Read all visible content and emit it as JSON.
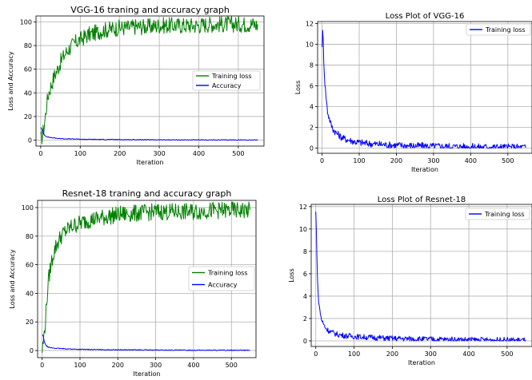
{
  "colors": {
    "training": "#008000",
    "accuracy": "#0000ff",
    "grid": "#b0b0b0"
  },
  "chart_data": [
    {
      "id": "vgg-acc",
      "type": "line",
      "title": "VGG-16 traning and accuracy graph",
      "xlabel": "Iteration",
      "ylabel": "Loss and Accuracy",
      "xlim": [
        -12,
        565
      ],
      "ylim": [
        -5,
        105
      ],
      "xticks": [
        0,
        100,
        200,
        300,
        400,
        500
      ],
      "yticks": [
        0,
        20,
        40,
        60,
        80,
        100
      ],
      "grid": true,
      "legend_position": "center-right",
      "series": [
        {
          "name": "Training loss",
          "color": "#008000",
          "x": [
            0,
            5,
            10,
            15,
            20,
            25,
            30,
            35,
            40,
            45,
            50,
            60,
            70,
            80,
            90,
            100,
            110,
            120,
            130,
            140,
            150,
            160,
            180,
            200,
            220,
            240,
            260,
            280,
            300,
            320,
            340,
            360,
            380,
            400,
            420,
            440,
            460,
            480,
            500,
            520,
            540,
            550
          ],
          "y": [
            0,
            5,
            15,
            30,
            40,
            45,
            50,
            55,
            58,
            62,
            66,
            72,
            77,
            80,
            83,
            85,
            87,
            89,
            90,
            91,
            92,
            93,
            94,
            95,
            95,
            96,
            96,
            96,
            97,
            97,
            97,
            97,
            97,
            97,
            98,
            98,
            98,
            98,
            98,
            98,
            98,
            97
          ],
          "noise": 7
        },
        {
          "name": "Accuracy",
          "color": "#0000ff",
          "x": [
            0,
            5,
            10,
            15,
            20,
            30,
            40,
            60,
            80,
            100,
            150,
            200,
            300,
            400,
            500,
            550
          ],
          "y": [
            11,
            7,
            4,
            3,
            2.5,
            2,
            1.6,
            1.2,
            1,
            0.8,
            0.6,
            0.5,
            0.3,
            0.2,
            0.2,
            0.2
          ],
          "noise": 0.3
        }
      ]
    },
    {
      "id": "vgg-loss",
      "type": "line",
      "title": "Loss Plot of VGG-16",
      "xlabel": "Iteration",
      "ylabel": "Loss",
      "xlim": [
        -12,
        565
      ],
      "ylim": [
        -0.5,
        12.2
      ],
      "xticks": [
        0,
        100,
        200,
        300,
        400,
        500
      ],
      "yticks": [
        0,
        2,
        4,
        6,
        8,
        10,
        12
      ],
      "grid": true,
      "legend_position": "top-right",
      "series": [
        {
          "name": "Training loss",
          "color": "#0000ff",
          "x": [
            0,
            2,
            5,
            8,
            12,
            15,
            20,
            25,
            30,
            40,
            50,
            60,
            70,
            80,
            90,
            100,
            120,
            140,
            160,
            180,
            200,
            250,
            300,
            350,
            400,
            450,
            500,
            550
          ],
          "y": [
            10,
            11.5,
            8,
            6,
            4.5,
            3.5,
            2.8,
            2.2,
            1.8,
            1.4,
            1.1,
            0.9,
            0.8,
            0.7,
            0.6,
            0.55,
            0.45,
            0.4,
            0.35,
            0.3,
            0.28,
            0.22,
            0.18,
            0.15,
            0.12,
            0.1,
            0.08,
            0.07
          ],
          "noise": 0.35
        }
      ]
    },
    {
      "id": "res-acc",
      "type": "line",
      "title": "Resnet-18 traning and accuracy graph",
      "xlabel": "Iteration",
      "ylabel": "Loss and Accuracy",
      "xlim": [
        -12,
        565
      ],
      "ylim": [
        -5,
        105
      ],
      "xticks": [
        0,
        100,
        200,
        300,
        400,
        500
      ],
      "yticks": [
        0,
        20,
        40,
        60,
        80,
        100
      ],
      "grid": true,
      "legend_position": "center-right",
      "series": [
        {
          "name": "Training loss",
          "color": "#008000",
          "x": [
            0,
            5,
            10,
            15,
            20,
            25,
            30,
            35,
            40,
            50,
            60,
            70,
            80,
            90,
            100,
            120,
            140,
            160,
            180,
            200,
            250,
            300,
            350,
            400,
            450,
            500,
            550
          ],
          "y": [
            0,
            10,
            25,
            45,
            55,
            62,
            68,
            72,
            75,
            80,
            83,
            85,
            87,
            88,
            89,
            91,
            92,
            93,
            94,
            95,
            96,
            97,
            97,
            97,
            98,
            98,
            98
          ],
          "noise": 6
        },
        {
          "name": "Accuracy",
          "color": "#0000ff",
          "x": [
            0,
            3,
            6,
            10,
            15,
            20,
            30,
            40,
            60,
            80,
            100,
            150,
            200,
            300,
            400,
            500,
            550
          ],
          "y": [
            11,
            10,
            6,
            3.5,
            2.5,
            2,
            1.7,
            1.5,
            1.2,
            1,
            0.8,
            0.6,
            0.5,
            0.3,
            0.2,
            0.2,
            0.2
          ],
          "noise": 0.3
        }
      ]
    },
    {
      "id": "res-loss",
      "type": "line",
      "title": "Loss Plot of Resnet-18",
      "xlabel": "Iteration",
      "ylabel": "Loss",
      "xlim": [
        -12,
        565
      ],
      "ylim": [
        -0.5,
        12.2
      ],
      "xticks": [
        0,
        100,
        200,
        300,
        400,
        500
      ],
      "yticks": [
        0,
        2,
        4,
        6,
        8,
        10,
        12
      ],
      "grid": true,
      "legend_position": "top-right",
      "series": [
        {
          "name": "Training loss",
          "color": "#0000ff",
          "x": [
            0,
            2,
            4,
            6,
            8,
            10,
            15,
            20,
            25,
            30,
            40,
            50,
            60,
            80,
            100,
            120,
            150,
            200,
            250,
            300,
            350,
            400,
            450,
            500,
            550
          ],
          "y": [
            11.5,
            9,
            6,
            4.2,
            3.5,
            2.8,
            1.9,
            1.5,
            1.2,
            1.0,
            0.8,
            0.65,
            0.55,
            0.45,
            0.4,
            0.35,
            0.3,
            0.22,
            0.18,
            0.15,
            0.12,
            0.1,
            0.08,
            0.07,
            0.06
          ],
          "noise": 0.25
        }
      ]
    }
  ]
}
